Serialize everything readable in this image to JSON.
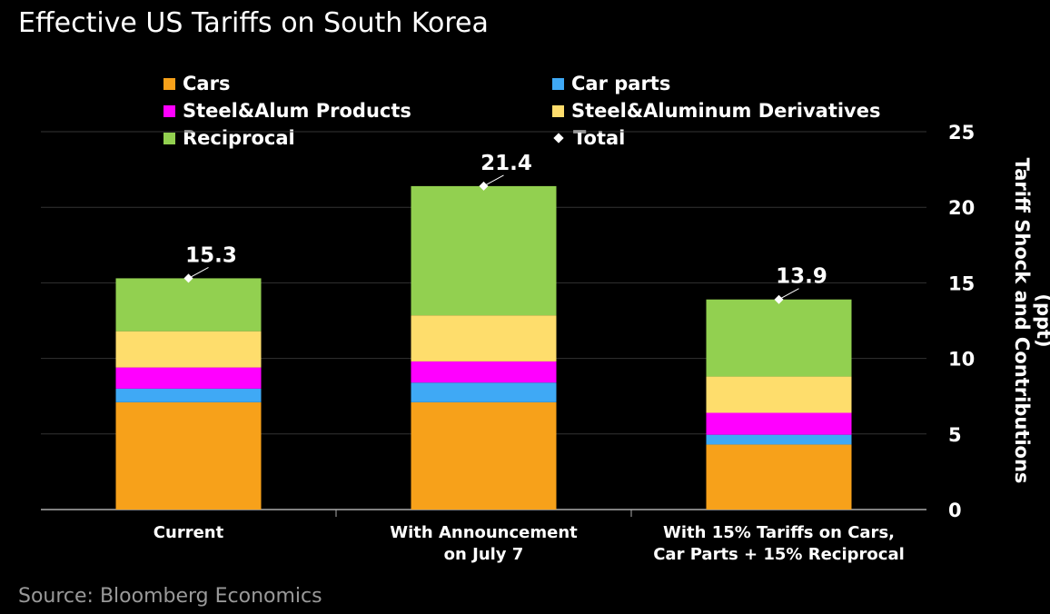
{
  "chart_data": {
    "type": "bar",
    "stacked": true,
    "title": "Effective US Tariffs on South Korea",
    "source": "Source: Bloomberg Economics",
    "ylabel": "Tariff Shock and Contributions (ppt)",
    "ylabel_lines": [
      "Tariff Shock and Contributions",
      "(ppt)"
    ],
    "ylim": [
      0,
      25
    ],
    "yticks": [
      0,
      5,
      10,
      15,
      20,
      25
    ],
    "y_axis_side": "right",
    "grid": true,
    "legend_placement": "top",
    "categories": [
      [
        "Current"
      ],
      [
        "With Announcement",
        "on July 7"
      ],
      [
        "With 15% Tariffs on Cars,",
        "Car Parts + 15% Reciprocal"
      ]
    ],
    "series": [
      {
        "name": "Cars",
        "color": "#f7a11a",
        "values": [
          7.1,
          7.1,
          4.3
        ]
      },
      {
        "name": "Car parts",
        "color": "#3fa9f5",
        "values": [
          0.9,
          1.3,
          0.65
        ]
      },
      {
        "name": "Steel&Alum Products",
        "color": "#ff00ff",
        "values": [
          1.4,
          1.4,
          1.45
        ]
      },
      {
        "name": "Steel&Aluminum Derivatives",
        "color": "#fedd6c",
        "values": [
          2.4,
          3.05,
          2.4
        ]
      },
      {
        "name": "Reciprocal",
        "color": "#92d050",
        "values": [
          3.5,
          8.55,
          5.1
        ]
      }
    ],
    "total": {
      "name": "Total",
      "values": [
        15.3,
        21.4,
        13.9
      ],
      "labels": [
        "15.3",
        "21.4",
        "13.9"
      ]
    }
  }
}
